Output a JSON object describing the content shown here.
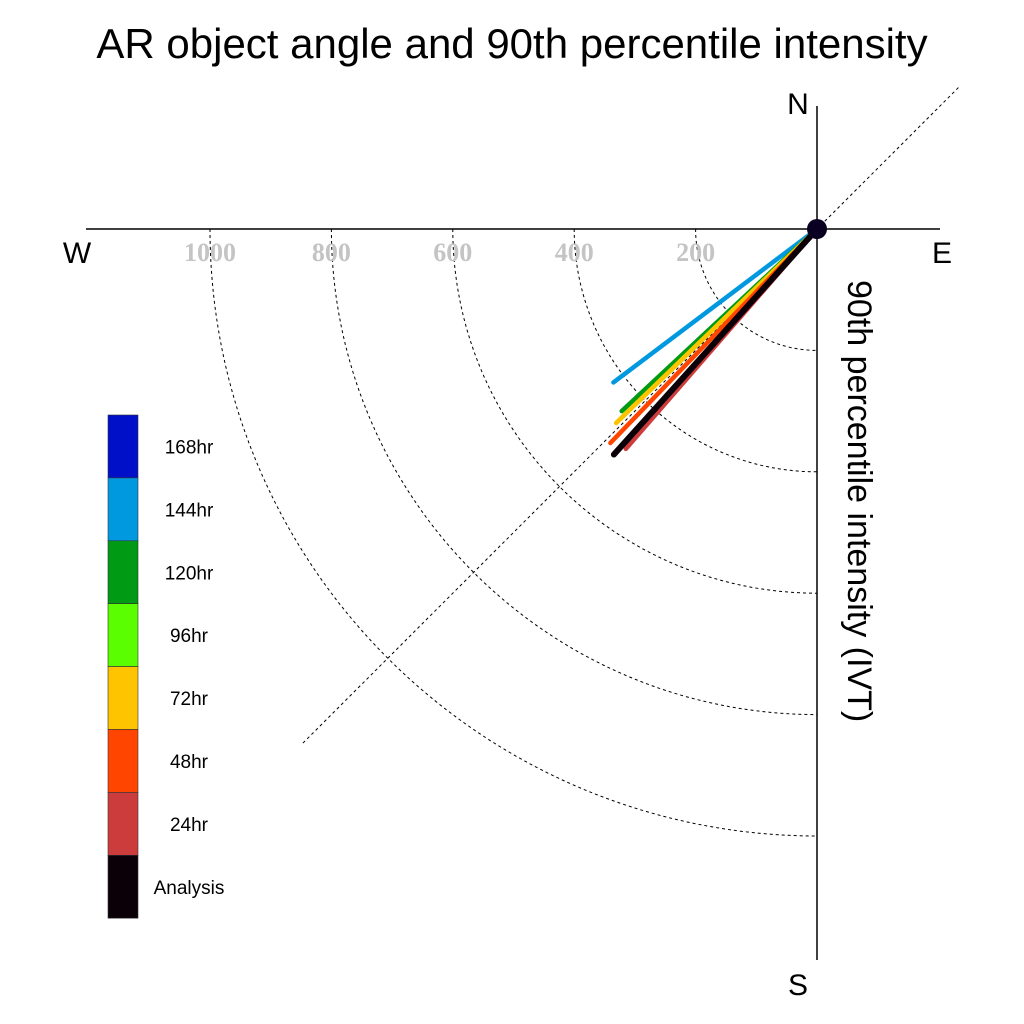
{
  "chart_data": {
    "type": "polar-vector",
    "title": "AR object angle and 90th percentile intensity",
    "ylabel": "90th percentile intensity (IVT)",
    "compass": {
      "north": "N",
      "south": "S",
      "east": "E",
      "west": "W"
    },
    "radial_ticks": [
      {
        "value": 200,
        "label": "200"
      },
      {
        "value": 400,
        "label": "400"
      },
      {
        "value": 600,
        "label": "600"
      },
      {
        "value": 800,
        "label": "800"
      },
      {
        "value": 1000,
        "label": "1000"
      }
    ],
    "rmax": 1200,
    "grid": true,
    "legend_position": "left",
    "series": [
      {
        "name": "168hr",
        "color": "#0010c8",
        "angle_deg": 0,
        "intensity": 0,
        "visible": false
      },
      {
        "name": "144hr",
        "color": "#0099e0",
        "angle_deg": 233,
        "intensity": 420
      },
      {
        "name": "120hr",
        "color": "#009a14",
        "angle_deg": 227,
        "intensity": 440
      },
      {
        "name": "96hr",
        "color": "#5afe00",
        "angle_deg": 226,
        "intensity": 450
      },
      {
        "name": "72hr",
        "color": "#ffc400",
        "angle_deg": 226,
        "intensity": 460
      },
      {
        "name": "48hr",
        "color": "#ff4500",
        "angle_deg": 224,
        "intensity": 490
      },
      {
        "name": "24hr",
        "color": "#cd3c3c",
        "angle_deg": 221,
        "intensity": 480
      },
      {
        "name": "Analysis",
        "color": "#0c0008",
        "angle_deg": 222,
        "intensity": 500
      }
    ]
  }
}
